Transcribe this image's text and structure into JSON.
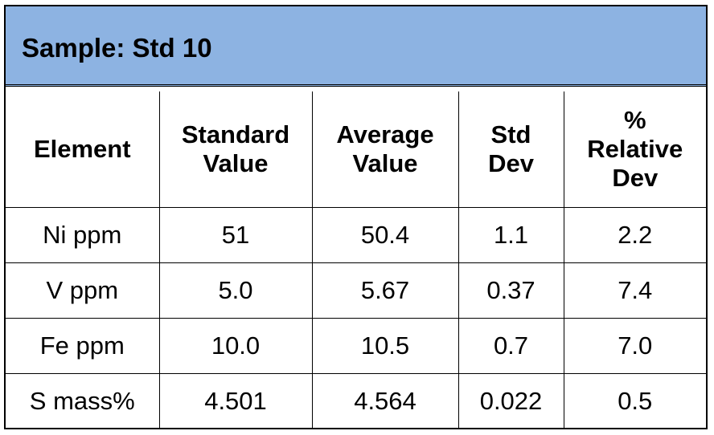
{
  "title": "Sample: Std 10",
  "table": {
    "headers": [
      [
        "Element"
      ],
      [
        "Standard",
        "Value"
      ],
      [
        "Average",
        "Value"
      ],
      [
        "Std",
        "Dev"
      ],
      [
        "%",
        "Relative",
        "Dev"
      ]
    ],
    "rows": [
      [
        "Ni ppm",
        "51",
        "50.4",
        "1.1",
        "2.2"
      ],
      [
        "V ppm",
        "5.0",
        "5.67",
        "0.37",
        "7.4"
      ],
      [
        "Fe ppm",
        "10.0",
        "10.5",
        "0.7",
        "7.0"
      ],
      [
        "S mass%",
        "4.501",
        "4.564",
        "0.022",
        "0.5"
      ]
    ]
  },
  "colors": {
    "title_background": "#8db3e2",
    "border": "#000000"
  }
}
